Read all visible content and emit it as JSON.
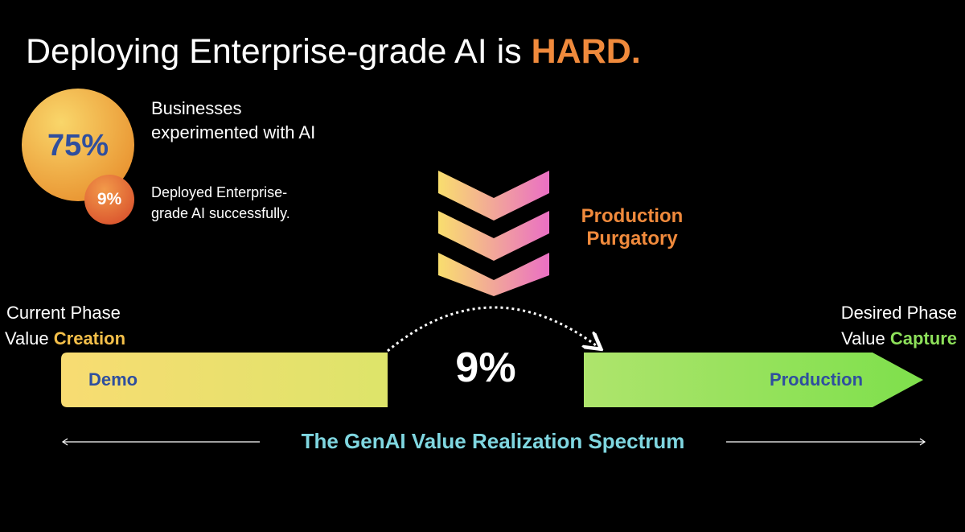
{
  "title": {
    "text": "Deploying Enterprise-grade AI is",
    "emphasis": "HARD."
  },
  "stats": [
    {
      "value": "75%",
      "lines": [
        "Businesses",
        "experimented with AI"
      ]
    },
    {
      "value": "9%",
      "lines": [
        "Deployed Enterprise-",
        "grade AI successfully."
      ]
    }
  ],
  "purgatory": {
    "lines": [
      "Production",
      "Purgatory"
    ]
  },
  "current_phase": {
    "label": "Current Phase",
    "prefix": "Value",
    "emphasis": "Creation"
  },
  "desired_phase": {
    "label": "Desired Phase",
    "prefix": "Value",
    "emphasis": "Capture"
  },
  "spectrum": {
    "start": "Demo",
    "gap": "9%",
    "end": "Production",
    "caption": "The GenAI Value Realization Spectrum"
  }
}
